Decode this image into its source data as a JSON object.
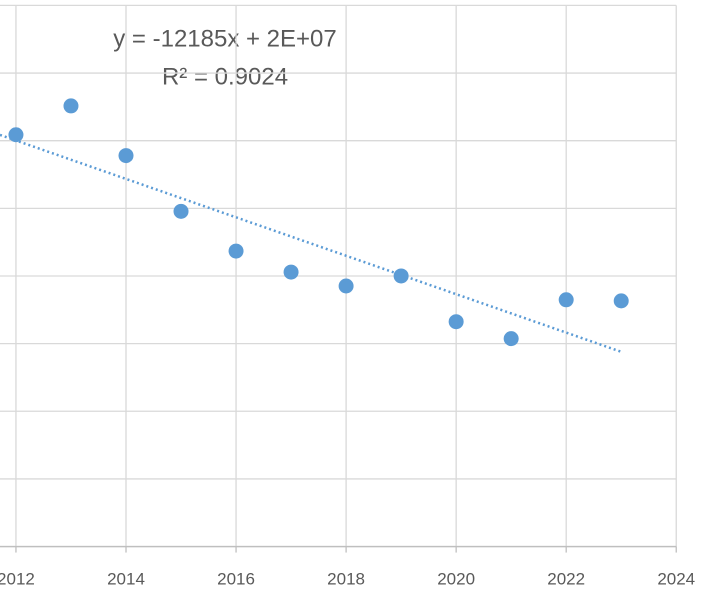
{
  "chart_data": {
    "type": "scatter",
    "x": [
      2012,
      2013,
      2014,
      2015,
      2016,
      2017,
      2018,
      2019,
      2020,
      2021,
      2022,
      2023
    ],
    "values": [
      304400,
      325700,
      289000,
      247800,
      218400,
      202900,
      192600,
      200000,
      166200,
      153700,
      182400,
      181600
    ],
    "color": "#5b9bd5",
    "xlim": [
      2011.71,
      2024.45
    ],
    "xticks": [
      2012,
      2014,
      2016,
      2018,
      2020,
      2022,
      2024
    ],
    "ylim": [
      -1800,
      404000
    ],
    "ygrid": [
      0,
      50000,
      100000,
      150000,
      200000,
      250000,
      300000,
      350000,
      400000
    ],
    "grid": true,
    "trendline": {
      "equation": "y = -12185x + 2E+07",
      "r2": "R² = 0.9024",
      "style": "dotted"
    }
  }
}
